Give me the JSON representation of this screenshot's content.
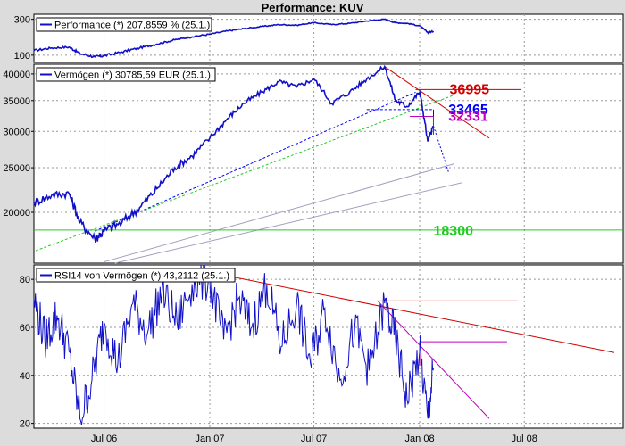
{
  "title": "Performance: KUV",
  "colors": {
    "price": "#1010c8",
    "red": "#d00000",
    "blue": "#0000ff",
    "magenta": "#c000c0",
    "green": "#22cc22",
    "grey": "#a0a0c0"
  },
  "chart_data": [
    {
      "type": "line",
      "panel": "performance",
      "legend": "Performance (*) 207,8559 % (25.1.)",
      "y_ticks": [
        "300",
        "100"
      ],
      "ylim": [
        80,
        350
      ],
      "y_scale": "log",
      "x_ticks": [
        "Jul 06",
        "Jan 07",
        "Jul 07",
        "Jan 08",
        "Jul 08"
      ],
      "series": [
        {
          "x": [
            "2006-03-01",
            "2006-04-01",
            "2006-05-01",
            "2006-05-20",
            "2006-06-15",
            "2006-07-01",
            "2006-08-01",
            "2006-09-01",
            "2006-10-01",
            "2006-11-01",
            "2006-12-01",
            "2007-01-01",
            "2007-02-01",
            "2007-03-01",
            "2007-04-01",
            "2007-05-01",
            "2007-06-01",
            "2007-07-01",
            "2007-08-01",
            "2007-09-01",
            "2007-10-01",
            "2007-11-01",
            "2007-11-20",
            "2007-12-10",
            "2008-01-01",
            "2008-01-15",
            "2008-01-25"
          ],
          "values": [
            115,
            125,
            128,
            105,
            95,
            98,
            110,
            125,
            140,
            160,
            175,
            190,
            210,
            225,
            240,
            255,
            250,
            270,
            255,
            265,
            285,
            300,
            270,
            265,
            245,
            200,
            208
          ]
        }
      ]
    },
    {
      "type": "line",
      "panel": "assets",
      "legend": "Vermögen (*) 30785,59 EUR (25.1.)",
      "y_ticks": [
        "40000",
        "35000",
        "30000",
        "25000",
        "20000"
      ],
      "ylim": [
        15500,
        42000
      ],
      "y_scale": "log",
      "x_ticks": [
        "Jul 06",
        "Jan 07",
        "Jul 07",
        "Jan 08",
        "Jul 08"
      ],
      "series": [
        {
          "x": [
            "2006-03-01",
            "2006-04-01",
            "2006-05-01",
            "2006-05-20",
            "2006-06-15",
            "2006-07-01",
            "2006-08-01",
            "2006-09-01",
            "2006-10-01",
            "2006-11-01",
            "2006-12-01",
            "2007-01-01",
            "2007-02-01",
            "2007-03-01",
            "2007-04-01",
            "2007-05-01",
            "2007-06-01",
            "2007-07-01",
            "2007-08-01",
            "2007-09-01",
            "2007-10-01",
            "2007-11-01",
            "2007-11-20",
            "2007-12-10",
            "2008-01-01",
            "2008-01-15",
            "2008-01-25"
          ],
          "values": [
            21000,
            21800,
            22000,
            19000,
            17500,
            18200,
            19000,
            20500,
            22500,
            25000,
            26500,
            29000,
            32000,
            34500,
            36500,
            38500,
            37500,
            39000,
            34500,
            36500,
            39000,
            41500,
            35000,
            34000,
            36500,
            28500,
            30785
          ]
        }
      ],
      "levels": [
        {
          "label": "36995",
          "value": 36995,
          "color": "red"
        },
        {
          "label": "33465",
          "value": 33465,
          "color": "blue"
        },
        {
          "label": "32331",
          "value": 32331,
          "color": "magenta"
        },
        {
          "label": "18300",
          "value": 18300,
          "color": "green"
        }
      ]
    },
    {
      "type": "line",
      "panel": "rsi",
      "legend": "RSI14 von Vermögen (*) 43,2112 (25.1.)",
      "y_ticks": [
        "80",
        "60",
        "40",
        "20"
      ],
      "ylim": [
        18,
        86
      ],
      "x_ticks": [
        "Jul 06",
        "Jan 07",
        "Jul 07",
        "Jan 08",
        "Jul 08"
      ],
      "series": [
        {
          "x": [
            "2006-03-01",
            "2006-03-20",
            "2006-04-10",
            "2006-05-01",
            "2006-05-20",
            "2006-06-10",
            "2006-07-01",
            "2006-07-25",
            "2006-08-20",
            "2006-09-15",
            "2006-10-10",
            "2006-11-05",
            "2006-12-01",
            "2007-01-01",
            "2007-01-25",
            "2007-02-20",
            "2007-03-15",
            "2007-04-10",
            "2007-05-05",
            "2007-06-01",
            "2007-06-25",
            "2007-07-20",
            "2007-08-15",
            "2007-09-10",
            "2007-10-05",
            "2007-11-01",
            "2007-11-20",
            "2007-12-10",
            "2008-01-01",
            "2008-01-15",
            "2008-01-25"
          ],
          "values": [
            72,
            55,
            65,
            50,
            22,
            38,
            62,
            45,
            70,
            58,
            75,
            62,
            78,
            80,
            55,
            72,
            60,
            78,
            52,
            70,
            45,
            68,
            38,
            60,
            42,
            70,
            55,
            30,
            50,
            22,
            43
          ]
        }
      ]
    }
  ]
}
